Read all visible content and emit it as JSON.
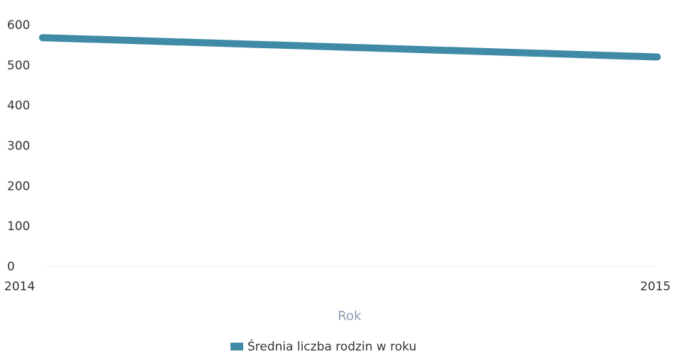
{
  "chart_data": {
    "type": "line",
    "x": [
      2014,
      2015
    ],
    "x_tick_labels": [
      "2014",
      "2015"
    ],
    "series": [
      {
        "name": "Średnia liczba rodzin w roku",
        "values": [
          568,
          520
        ],
        "color": "#3f8aa6"
      }
    ],
    "xlabel": "Rok",
    "ylabel": "",
    "ylim": [
      0,
      600
    ],
    "y_ticks": [
      0,
      100,
      200,
      300,
      400,
      500,
      600
    ],
    "y_tick_labels": [
      "0",
      "100",
      "200",
      "300",
      "400",
      "500",
      "600"
    ],
    "grid": false,
    "legend": "bottom"
  }
}
